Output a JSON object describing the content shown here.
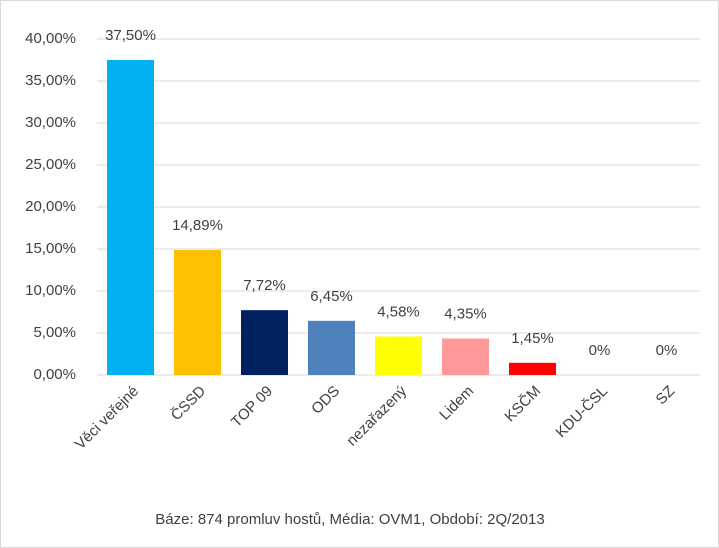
{
  "chart_data": {
    "type": "bar",
    "categories": [
      "Věci veřejné",
      "ČSSD",
      "TOP 09",
      "ODS",
      "nezařazený",
      "Lidem",
      "KSČM",
      "KDU-ČSL",
      "SZ"
    ],
    "values": [
      37.5,
      14.89,
      7.72,
      6.45,
      4.58,
      4.35,
      1.45,
      0,
      0
    ],
    "value_labels": [
      "37,50%",
      "14,89%",
      "7,72%",
      "6,45%",
      "4,58%",
      "4,35%",
      "1,45%",
      "0%",
      "0%"
    ],
    "colors": [
      "#00b0f0",
      "#ffc000",
      "#002060",
      "#4f81bd",
      "#ffff00",
      "#ff9999",
      "#ff0000",
      "#ffc000",
      "#00b050"
    ],
    "ylim": [
      0,
      40
    ],
    "yticks": [
      {
        "value": 0,
        "label": "0,00%"
      },
      {
        "value": 5,
        "label": "5,00%"
      },
      {
        "value": 10,
        "label": "10,00%"
      },
      {
        "value": 15,
        "label": "15,00%"
      },
      {
        "value": 20,
        "label": "20,00%"
      },
      {
        "value": 25,
        "label": "25,00%"
      },
      {
        "value": 30,
        "label": "30,00%"
      },
      {
        "value": 35,
        "label": "35,00%"
      },
      {
        "value": 40,
        "label": "40,00%"
      }
    ],
    "grid": true,
    "note": "Báze: 874 promluv hostů, Média: OVM1, Období: 2Q/2013"
  }
}
